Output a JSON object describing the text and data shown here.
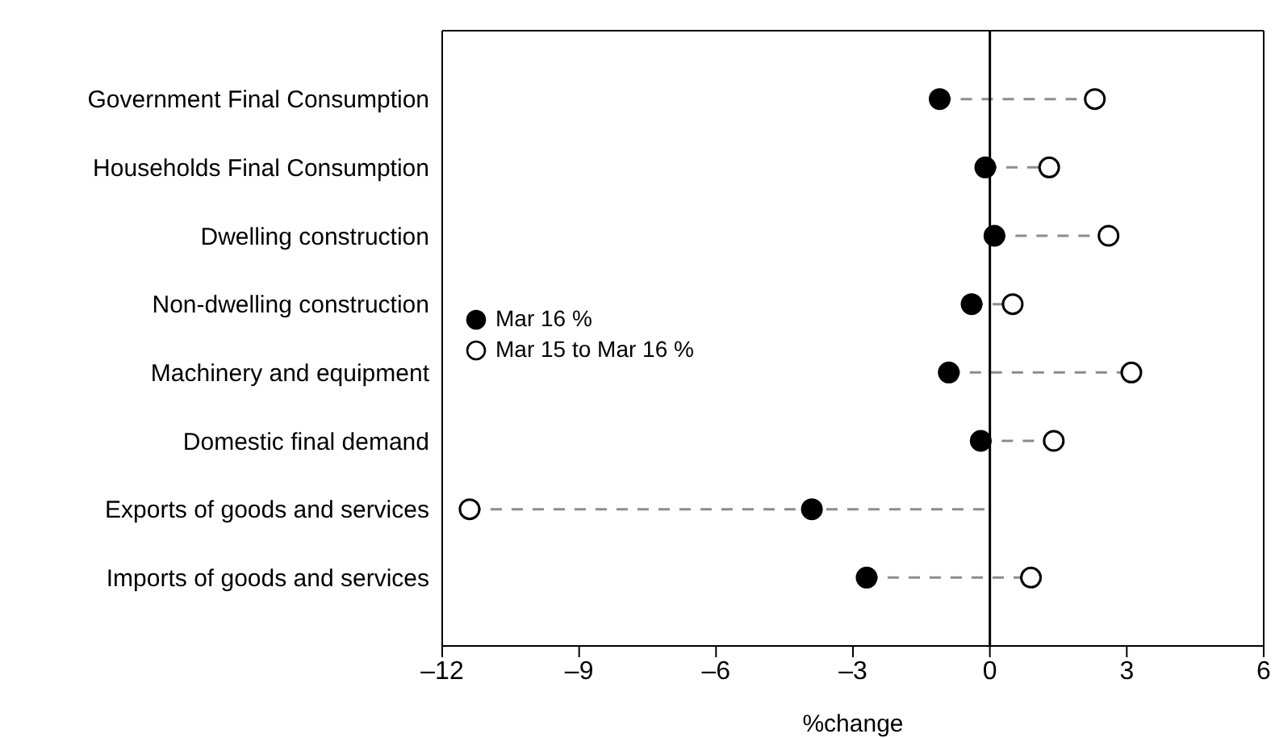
{
  "chart_data": {
    "type": "scatter",
    "orientation": "horizontal",
    "xlabel": "%change",
    "categories": [
      "Government Final Consumption",
      "Households Final Consumption",
      "Dwelling construction",
      "Non-dwelling construction",
      "Machinery and equipment",
      "Domestic final demand",
      "Exports of goods and services",
      "Imports of goods and services"
    ],
    "series": [
      {
        "name": "Mar 16 %",
        "color": "#000000",
        "values": [
          -1.1,
          -0.1,
          0.1,
          -0.4,
          -0.9,
          -0.2,
          -3.9,
          -2.7
        ]
      },
      {
        "name": "Mar 15 to Mar 16 %",
        "color": "#ffffff",
        "values": [
          2.3,
          1.3,
          2.6,
          0.5,
          3.1,
          1.4,
          -11.4,
          0.9
        ]
      }
    ],
    "xlim": [
      -12,
      6
    ],
    "xticks": [
      {
        "value": -12,
        "label": "–12"
      },
      {
        "value": -9,
        "label": "–9"
      },
      {
        "value": -6,
        "label": "–6"
      },
      {
        "value": -3,
        "label": "–3"
      },
      0,
      3,
      6
    ],
    "ref_lines": [
      {
        "axis": "x",
        "value": 0,
        "color": "#000000"
      }
    ],
    "legend": "left",
    "marker": "circle"
  }
}
